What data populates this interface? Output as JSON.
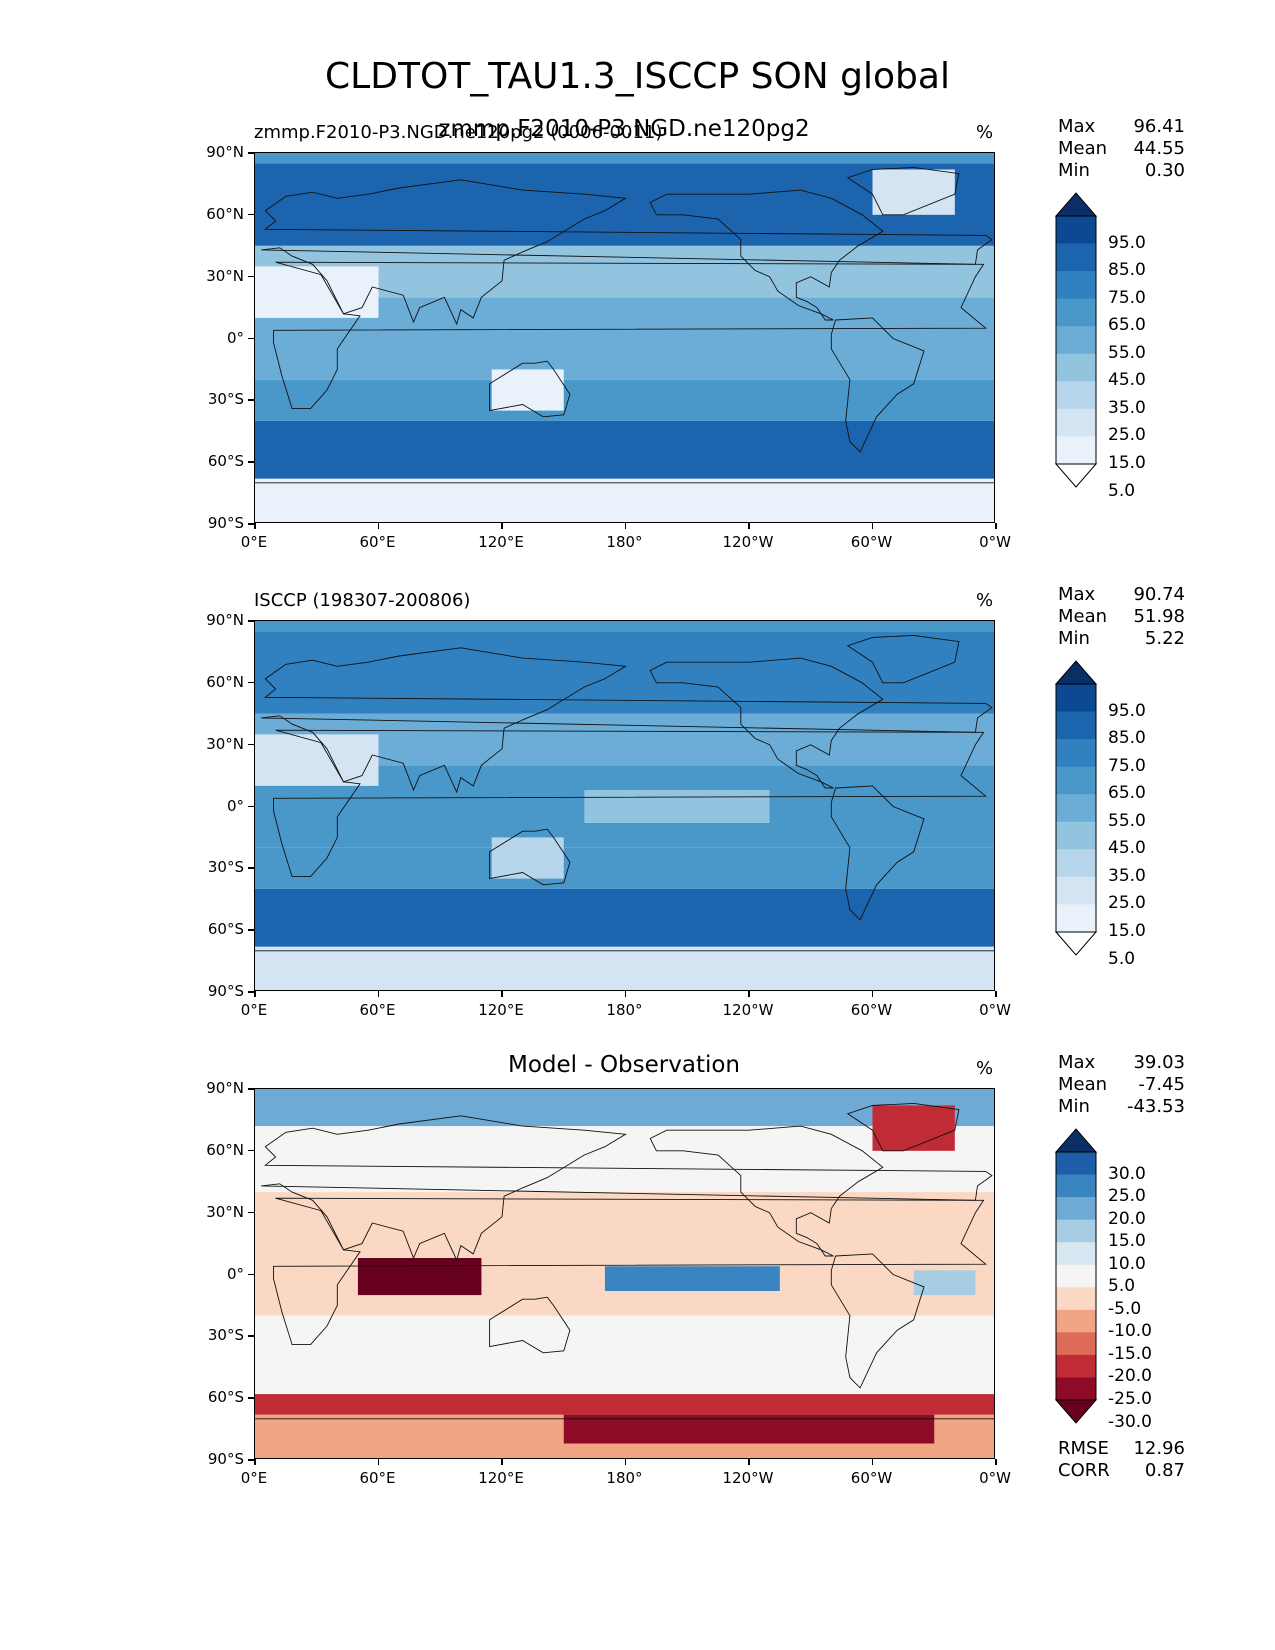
{
  "figure": {
    "title": "CLDTOT_TAU1.3_ISCCP SON global"
  },
  "x_ticks": [
    "0°E",
    "60°E",
    "120°E",
    "180°",
    "120°W",
    "60°W",
    "0°W"
  ],
  "y_ticks": [
    "90°N",
    "60°N",
    "30°N",
    "0°",
    "30°S",
    "60°S",
    "90°S"
  ],
  "panels": [
    {
      "left_title": "zmmp.F2010-P3.NGD.ne120pg2 (0006-0011)",
      "center_title": "zmmp.F2010-P3.NGD.ne120pg2",
      "units": "%",
      "stats": [
        {
          "name": "Max",
          "value": "96.41"
        },
        {
          "name": "Mean",
          "value": "44.55"
        },
        {
          "name": "Min",
          "value": "0.30"
        }
      ],
      "colorbar": {
        "ticks": [
          "95.0",
          "85.0",
          "75.0",
          "65.0",
          "55.0",
          "45.0",
          "35.0",
          "25.0",
          "15.0",
          "5.0"
        ],
        "colors_top_to_bottom": [
          "#0a2f64",
          "#0b4a93",
          "#1c64ad",
          "#3180c0",
          "#4a97ca",
          "#6badd6",
          "#92c4df",
          "#b8d6eb",
          "#d4e4f3",
          "#e9f1fa",
          "#ffffff"
        ]
      }
    },
    {
      "left_title": "ISCCP (198307-200806)",
      "center_title": "",
      "units": "%",
      "stats": [
        {
          "name": "Max",
          "value": "90.74"
        },
        {
          "name": "Mean",
          "value": "51.98"
        },
        {
          "name": "Min",
          "value": "5.22"
        }
      ],
      "colorbar": {
        "ticks": [
          "95.0",
          "85.0",
          "75.0",
          "65.0",
          "55.0",
          "45.0",
          "35.0",
          "25.0",
          "15.0",
          "5.0"
        ],
        "colors_top_to_bottom": [
          "#0a2f64",
          "#0b4a93",
          "#1c64ad",
          "#3180c0",
          "#4a97ca",
          "#6badd6",
          "#92c4df",
          "#b8d6eb",
          "#d4e4f3",
          "#e9f1fa",
          "#ffffff"
        ]
      }
    },
    {
      "left_title": "",
      "center_title": "Model - Observation",
      "units": "%",
      "stats": [
        {
          "name": "Max",
          "value": "39.03"
        },
        {
          "name": "Mean",
          "value": "-7.45"
        },
        {
          "name": "Min",
          "value": "-43.53"
        }
      ],
      "extra_stats": [
        {
          "name": "RMSE",
          "value": "12.96"
        },
        {
          "name": "CORR",
          "value": "0.87"
        }
      ],
      "colorbar": {
        "ticks": [
          "30.0",
          "25.0",
          "20.0",
          "15.0",
          "10.0",
          "5.0",
          "-5.0",
          "-10.0",
          "-15.0",
          "-20.0",
          "-25.0",
          "-30.0"
        ],
        "colors_top_to_bottom": [
          "#0a2f64",
          "#1e5da8",
          "#3985c2",
          "#6eaad3",
          "#a7cde4",
          "#d6e7f1",
          "#f5f5f5",
          "#fbd8c3",
          "#f2a584",
          "#dc6b58",
          "#c02b36",
          "#8d0b27",
          "#67001f"
        ]
      }
    }
  ],
  "chart_data": [
    {
      "type": "heatmap",
      "title": "zmmp.F2010-P3.NGD.ne120pg2 (0006-0011)",
      "units": "%",
      "x_range": [
        0,
        360
      ],
      "y_range": [
        -90,
        90
      ],
      "stats": {
        "Max": 96.41,
        "Mean": 44.55,
        "Min": 0.3
      },
      "levels": [
        5,
        15,
        25,
        35,
        45,
        55,
        65,
        75,
        85,
        95
      ],
      "field_sketch": [
        {
          "lon": [
            0,
            360
          ],
          "lat": [
            -90,
            -68
          ],
          "value": 8
        },
        {
          "lon": [
            0,
            360
          ],
          "lat": [
            -68,
            -40
          ],
          "value": 80
        },
        {
          "lon": [
            0,
            360
          ],
          "lat": [
            -40,
            -20
          ],
          "value": 55
        },
        {
          "lon": [
            0,
            360
          ],
          "lat": [
            -20,
            20
          ],
          "value": 50
        },
        {
          "lon": [
            0,
            360
          ],
          "lat": [
            20,
            45
          ],
          "value": 40
        },
        {
          "lon": [
            0,
            360
          ],
          "lat": [
            45,
            85
          ],
          "value": 75
        },
        {
          "lon": [
            0,
            360
          ],
          "lat": [
            85,
            90
          ],
          "value": 55
        },
        {
          "region": "North Africa / Middle East",
          "lon": [
            0,
            60
          ],
          "lat": [
            10,
            35
          ],
          "value": 8
        },
        {
          "region": "Australia",
          "lon": [
            115,
            150
          ],
          "lat": [
            -35,
            -15
          ],
          "value": 12
        },
        {
          "region": "Greenland",
          "lon": [
            300,
            340
          ],
          "lat": [
            60,
            82
          ],
          "value": 15
        }
      ]
    },
    {
      "type": "heatmap",
      "title": "ISCCP (198307-200806)",
      "units": "%",
      "x_range": [
        0,
        360
      ],
      "y_range": [
        -90,
        90
      ],
      "stats": {
        "Max": 90.74,
        "Mean": 51.98,
        "Min": 5.22
      },
      "levels": [
        5,
        15,
        25,
        35,
        45,
        55,
        65,
        75,
        85,
        95
      ],
      "field_sketch": [
        {
          "lon": [
            0,
            360
          ],
          "lat": [
            -90,
            -68
          ],
          "value": 18
        },
        {
          "lon": [
            0,
            360
          ],
          "lat": [
            -68,
            -40
          ],
          "value": 78
        },
        {
          "lon": [
            0,
            360
          ],
          "lat": [
            -40,
            -20
          ],
          "value": 60
        },
        {
          "lon": [
            0,
            360
          ],
          "lat": [
            -20,
            20
          ],
          "value": 58
        },
        {
          "lon": [
            0,
            360
          ],
          "lat": [
            20,
            45
          ],
          "value": 48
        },
        {
          "lon": [
            0,
            360
          ],
          "lat": [
            45,
            85
          ],
          "value": 70
        },
        {
          "lon": [
            0,
            360
          ],
          "lat": [
            85,
            90
          ],
          "value": 55
        },
        {
          "region": "North Africa / Middle East",
          "lon": [
            0,
            60
          ],
          "lat": [
            10,
            35
          ],
          "value": 20
        },
        {
          "region": "Australia",
          "lon": [
            115,
            150
          ],
          "lat": [
            -35,
            -15
          ],
          "value": 28
        },
        {
          "region": "Equatorial Pacific",
          "lon": [
            160,
            250
          ],
          "lat": [
            -8,
            8
          ],
          "value": 35
        }
      ]
    },
    {
      "type": "heatmap",
      "title": "Model - Observation",
      "units": "%",
      "x_range": [
        0,
        360
      ],
      "y_range": [
        -90,
        90
      ],
      "stats": {
        "Max": 39.03,
        "Mean": -7.45,
        "Min": -43.53,
        "RMSE": 12.96,
        "CORR": 0.87
      },
      "levels": [
        -30,
        -25,
        -20,
        -15,
        -10,
        -5,
        5,
        10,
        15,
        20,
        25,
        30
      ],
      "field_sketch": [
        {
          "lon": [
            0,
            360
          ],
          "lat": [
            -90,
            -68
          ],
          "value": -12
        },
        {
          "lon": [
            0,
            360
          ],
          "lat": [
            -68,
            -58
          ],
          "value": -22
        },
        {
          "lon": [
            0,
            360
          ],
          "lat": [
            -58,
            -20
          ],
          "value": -2
        },
        {
          "lon": [
            0,
            360
          ],
          "lat": [
            -20,
            40
          ],
          "value": -10
        },
        {
          "lon": [
            0,
            360
          ],
          "lat": [
            40,
            72
          ],
          "value": -3
        },
        {
          "lon": [
            0,
            360
          ],
          "lat": [
            72,
            90
          ],
          "value": 18
        },
        {
          "region": "Indian Ocean",
          "lon": [
            50,
            110
          ],
          "lat": [
            -10,
            8
          ],
          "value": -35
        },
        {
          "region": "Equatorial Pacific",
          "lon": [
            170,
            255
          ],
          "lat": [
            -8,
            4
          ],
          "value": 20
        },
        {
          "region": "Tropical Atlantic",
          "lon": [
            320,
            350
          ],
          "lat": [
            -10,
            2
          ],
          "value": 12
        },
        {
          "region": "Ross / Amundsen Sea",
          "lon": [
            150,
            330
          ],
          "lat": [
            -82,
            -68
          ],
          "value": -28
        },
        {
          "region": "Greenland",
          "lon": [
            300,
            340
          ],
          "lat": [
            60,
            82
          ],
          "value": -22
        }
      ]
    }
  ]
}
